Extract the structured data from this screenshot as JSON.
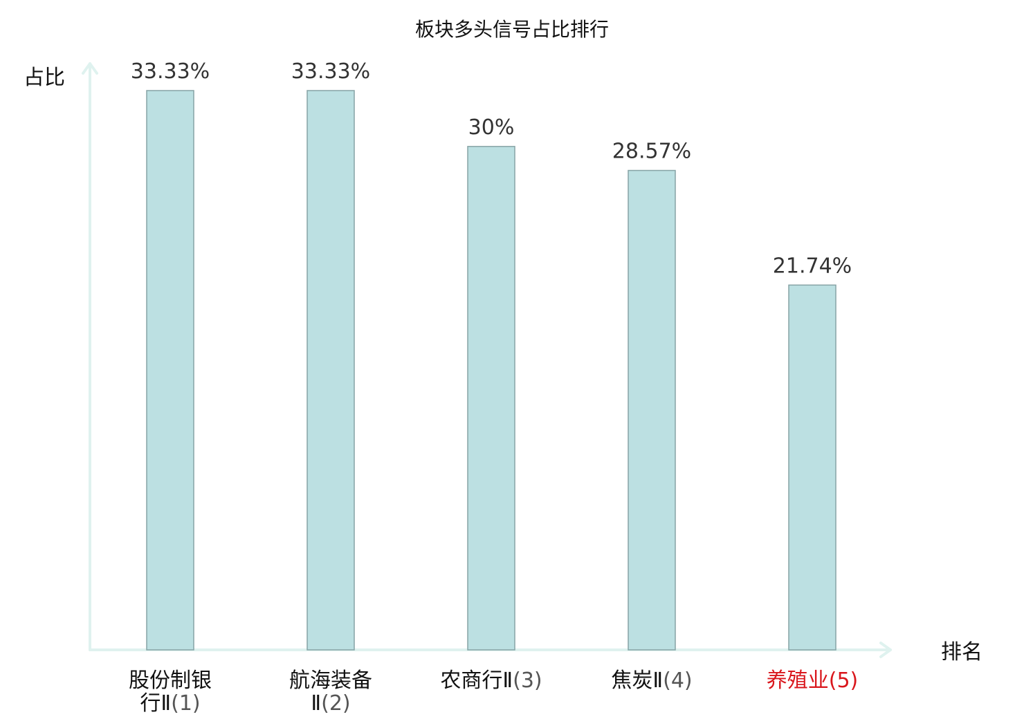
{
  "chart_data": {
    "type": "bar",
    "title": "板块多头信号占比排行",
    "xlabel": "排名",
    "ylabel": "占比",
    "categories": [
      {
        "name_lines": [
          "股份制银",
          "行Ⅱ"
        ],
        "rank": "(1)",
        "highlight": false
      },
      {
        "name_lines": [
          "航海装备",
          "Ⅱ"
        ],
        "rank": "(2)",
        "highlight": false
      },
      {
        "name_lines": [
          "农商行Ⅱ"
        ],
        "rank": "(3)",
        "highlight": false
      },
      {
        "name_lines": [
          "焦炭Ⅱ"
        ],
        "rank": "(4)",
        "highlight": false
      },
      {
        "name_lines": [
          "养殖业"
        ],
        "rank": "(5)",
        "highlight": true
      }
    ],
    "values": [
      33.33,
      33.33,
      30,
      28.57,
      21.74
    ],
    "value_labels": [
      "33.33%",
      "33.33%",
      "30%",
      "28.57%",
      "21.74%"
    ],
    "ylim": [
      0,
      33.33
    ],
    "grid": false,
    "colors": {
      "bar_fill": "#bce0e2",
      "bar_stroke": "#86a3a5",
      "axis": "#dff2ef",
      "highlight_label": "#d9161c"
    }
  }
}
